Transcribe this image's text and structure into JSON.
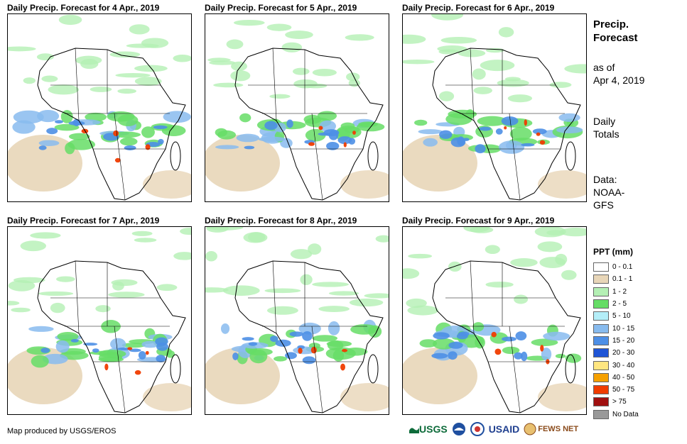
{
  "panels": [
    {
      "title": "Daily Precip. Forecast for 4 Apr., 2019"
    },
    {
      "title": "Daily Precip. Forecast for 5 Apr., 2019"
    },
    {
      "title": "Daily Precip. Forecast for 6 Apr., 2019"
    },
    {
      "title": "Daily Precip. Forecast for 7 Apr., 2019"
    },
    {
      "title": "Daily Precip. Forecast for 8 Apr., 2019"
    },
    {
      "title": "Daily Precip. Forecast for 9 Apr., 2019"
    }
  ],
  "sidebar": {
    "title_line1": "Precip.",
    "title_line2": "Forecast",
    "asof_line1": "as of",
    "asof_line2": "Apr 4, 2019",
    "daily_line1": "Daily",
    "daily_line2": "Totals",
    "data_line1": "Data:",
    "data_line2": "NOAA-",
    "data_line3": "GFS"
  },
  "legend": {
    "title": "PPT (mm)",
    "items": [
      {
        "label": "0 - 0.1",
        "color": "#ffffff"
      },
      {
        "label": "0.1 - 1",
        "color": "#e8d6b8"
      },
      {
        "label": "1 - 2",
        "color": "#b4f0b4"
      },
      {
        "label": "2 - 5",
        "color": "#66dd66"
      },
      {
        "label": "5 - 10",
        "color": "#b4eef8"
      },
      {
        "label": "10 - 15",
        "color": "#88bbee"
      },
      {
        "label": "15 - 20",
        "color": "#4d8fe6"
      },
      {
        "label": "20 - 30",
        "color": "#1f55d6"
      },
      {
        "label": "30 - 40",
        "color": "#ffe680"
      },
      {
        "label": "40 - 50",
        "color": "#f5a000"
      },
      {
        "label": "50 - 75",
        "color": "#f03c00"
      },
      {
        "label": "> 75",
        "color": "#a01010"
      },
      {
        "label": "No Data",
        "color": "#999999"
      }
    ]
  },
  "footer": {
    "credit": "Map produced by USGS/EROS"
  },
  "logos": {
    "usgs": "USGS",
    "usaid": "USAID",
    "fewsnet": "FEWS NET"
  }
}
